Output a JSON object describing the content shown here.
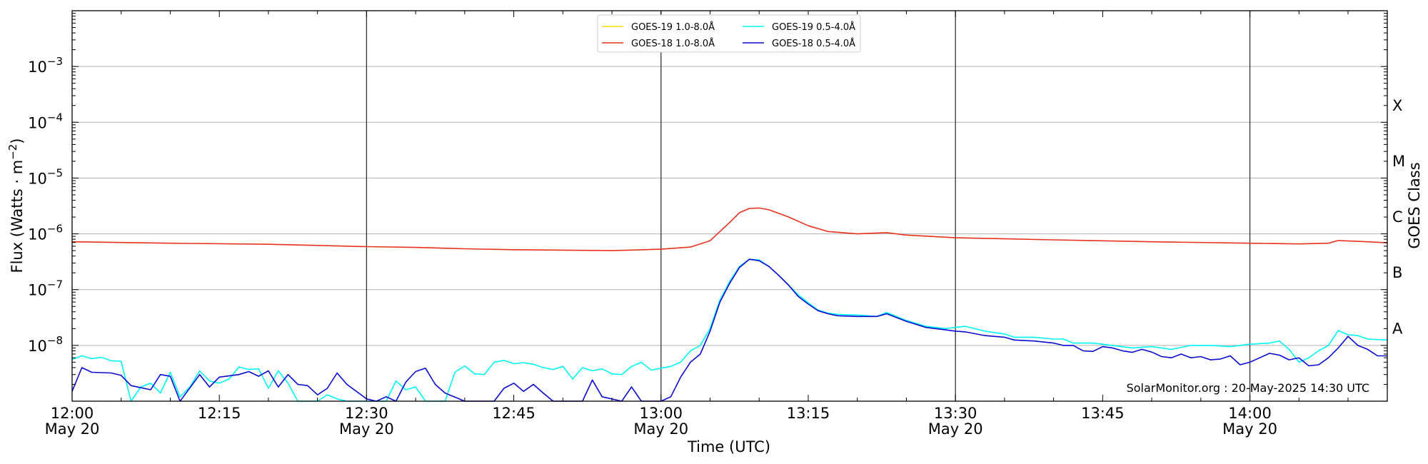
{
  "chart_data": {
    "type": "line",
    "xlabel": "Time (UTC)",
    "ylabel_main": "Flux (Watts · m",
    "ylabel_sup": "−2",
    "ylabel_end": ")",
    "ylabel_right": "GOES Class",
    "y_scale": "log",
    "ylim": [
      1e-09,
      0.01
    ],
    "xlim": [
      "12:00",
      "14:14"
    ],
    "grid": "horizontal",
    "credit": "SolarMonitor.org : 20-May-2025 14:30 UTC",
    "legend_position": "top-center",
    "ytick_labels": [
      {
        "base": "10",
        "exp": "−3",
        "value": 0.001
      },
      {
        "base": "10",
        "exp": "−4",
        "value": 0.0001
      },
      {
        "base": "10",
        "exp": "−5",
        "value": 1e-05
      },
      {
        "base": "10",
        "exp": "−6",
        "value": 1e-06
      },
      {
        "base": "10",
        "exp": "−7",
        "value": 1e-07
      },
      {
        "base": "10",
        "exp": "−8",
        "value": 1e-08
      }
    ],
    "xtick_labels": [
      {
        "time": "12:00",
        "date": "May 20"
      },
      {
        "time": "12:15",
        "date": ""
      },
      {
        "time": "12:30",
        "date": "May 20"
      },
      {
        "time": "12:45",
        "date": ""
      },
      {
        "time": "13:00",
        "date": "May 20"
      },
      {
        "time": "13:15",
        "date": ""
      },
      {
        "time": "13:30",
        "date": "May 20"
      },
      {
        "time": "13:45",
        "date": ""
      },
      {
        "time": "14:00",
        "date": "May 20"
      }
    ],
    "vertical_lines": [
      "12:30",
      "13:00",
      "13:30",
      "14:00"
    ],
    "goes_classes": [
      {
        "label": "X",
        "value": 0.0002
      },
      {
        "label": "M",
        "value": 2e-05
      },
      {
        "label": "C",
        "value": 2e-06
      },
      {
        "label": "B",
        "value": 2e-07
      },
      {
        "label": "A",
        "value": 2e-08
      }
    ],
    "series": [
      {
        "name": "GOES-19 1.0-8.0Å",
        "color": "#ffd700",
        "points": []
      },
      {
        "name": "GOES-18 1.0-8.0Å",
        "color": "#e8321e",
        "points": [
          [
            "12:00",
            7.2e-07
          ],
          [
            "12:05",
            7e-07
          ],
          [
            "12:10",
            6.8e-07
          ],
          [
            "12:20",
            6.5e-07
          ],
          [
            "12:25",
            6.2e-07
          ],
          [
            "12:30",
            5.9e-07
          ],
          [
            "12:35",
            5.7e-07
          ],
          [
            "12:40",
            5.4e-07
          ],
          [
            "12:45",
            5.2e-07
          ],
          [
            "12:50",
            5.1e-07
          ],
          [
            "12:55",
            5e-07
          ],
          [
            "13:00",
            5.3e-07
          ],
          [
            "13:03",
            5.8e-07
          ],
          [
            "13:05",
            7.5e-07
          ],
          [
            "13:06",
            1.1e-06
          ],
          [
            "13:07",
            1.6e-06
          ],
          [
            "13:08",
            2.4e-06
          ],
          [
            "13:09",
            2.85e-06
          ],
          [
            "13:10",
            2.9e-06
          ],
          [
            "13:11",
            2.7e-06
          ],
          [
            "13:13",
            2e-06
          ],
          [
            "13:15",
            1.4e-06
          ],
          [
            "13:17",
            1.1e-06
          ],
          [
            "13:20",
            1e-06
          ],
          [
            "13:23",
            1.05e-06
          ],
          [
            "13:25",
            9.5e-07
          ],
          [
            "13:30",
            8.5e-07
          ],
          [
            "13:40",
            7.8e-07
          ],
          [
            "13:50",
            7.2e-07
          ],
          [
            "14:00",
            6.8e-07
          ],
          [
            "14:05",
            6.6e-07
          ],
          [
            "14:08",
            6.8e-07
          ],
          [
            "14:09",
            7.6e-07
          ],
          [
            "14:12",
            7.2e-07
          ],
          [
            "14:14",
            6.9e-07
          ]
        ]
      },
      {
        "name": "GOES-19 0.5-4.0Å",
        "color": "#00f5f5",
        "points": [
          [
            "12:00",
            5.6e-09
          ],
          [
            "12:01",
            6.5e-09
          ],
          [
            "12:02",
            5.8e-09
          ],
          [
            "12:03",
            6.1e-09
          ],
          [
            "12:04",
            5.3e-09
          ],
          [
            "12:05",
            5.2e-09
          ],
          [
            "12:06",
            1e-09
          ],
          [
            "12:07",
            1.8e-09
          ],
          [
            "12:08",
            2.1e-09
          ],
          [
            "12:09",
            1.4e-09
          ],
          [
            "12:10",
            3.3e-09
          ],
          [
            "12:11",
            1.2e-09
          ],
          [
            "12:12",
            1.8e-09
          ],
          [
            "12:13",
            3.5e-09
          ],
          [
            "12:14",
            2.3e-09
          ],
          [
            "12:15",
            2.1e-09
          ],
          [
            "12:16",
            2.5e-09
          ],
          [
            "12:17",
            4.1e-09
          ],
          [
            "12:18",
            3.7e-09
          ],
          [
            "12:19",
            3.8e-09
          ],
          [
            "12:20",
            1.7e-09
          ],
          [
            "12:21",
            3.5e-09
          ],
          [
            "12:22",
            2.1e-09
          ],
          [
            "12:23",
            1e-09
          ],
          [
            "12:24",
            1e-09
          ],
          [
            "12:25",
            1e-09
          ],
          [
            "12:26",
            1.3e-09
          ],
          [
            "12:27",
            1.1e-09
          ],
          [
            "12:28",
            1e-09
          ],
          [
            "12:30",
            1e-09
          ],
          [
            "12:32",
            1e-09
          ],
          [
            "12:33",
            2.3e-09
          ],
          [
            "12:34",
            1.6e-09
          ],
          [
            "12:35",
            1.8e-09
          ],
          [
            "12:36",
            1e-09
          ],
          [
            "12:38",
            1e-09
          ],
          [
            "12:39",
            3.3e-09
          ],
          [
            "12:40",
            4.3e-09
          ],
          [
            "12:41",
            3.1e-09
          ],
          [
            "12:42",
            3e-09
          ],
          [
            "12:43",
            5e-09
          ],
          [
            "12:44",
            5.4e-09
          ],
          [
            "12:45",
            4.7e-09
          ],
          [
            "12:46",
            4.9e-09
          ],
          [
            "12:47",
            4.6e-09
          ],
          [
            "12:48",
            4e-09
          ],
          [
            "12:49",
            3.7e-09
          ],
          [
            "12:50",
            4.2e-09
          ],
          [
            "12:51",
            2.5e-09
          ],
          [
            "12:52",
            4e-09
          ],
          [
            "12:53",
            3.5e-09
          ],
          [
            "12:54",
            3.8e-09
          ],
          [
            "12:55",
            3.1e-09
          ],
          [
            "12:56",
            3e-09
          ],
          [
            "12:57",
            4.2e-09
          ],
          [
            "12:58",
            5e-09
          ],
          [
            "12:59",
            3.6e-09
          ],
          [
            "13:00",
            3.9e-09
          ],
          [
            "13:01",
            4.2e-09
          ],
          [
            "13:02",
            5e-09
          ],
          [
            "13:03",
            8e-09
          ],
          [
            "13:04",
            1e-08
          ],
          [
            "13:05",
            2e-08
          ],
          [
            "13:06",
            6.5e-08
          ],
          [
            "13:07",
            1.4e-07
          ],
          [
            "13:08",
            2.6e-07
          ],
          [
            "13:09",
            3.5e-07
          ],
          [
            "13:10",
            3.4e-07
          ],
          [
            "13:11",
            2.6e-07
          ],
          [
            "13:12",
            1.8e-07
          ],
          [
            "13:13",
            1.2e-07
          ],
          [
            "13:14",
            8e-08
          ],
          [
            "13:15",
            5.8e-08
          ],
          [
            "13:16",
            4.3e-08
          ],
          [
            "13:17",
            3.8e-08
          ],
          [
            "13:18",
            3.6e-08
          ],
          [
            "13:20",
            3.5e-08
          ],
          [
            "13:22",
            3.3e-08
          ],
          [
            "13:23",
            3.9e-08
          ],
          [
            "13:25",
            2.8e-08
          ],
          [
            "13:27",
            2.2e-08
          ],
          [
            "13:29",
            2e-08
          ],
          [
            "13:30",
            2.1e-08
          ],
          [
            "13:31",
            2.2e-08
          ],
          [
            "13:33",
            1.8e-08
          ],
          [
            "13:35",
            1.6e-08
          ],
          [
            "13:36",
            1.4e-08
          ],
          [
            "13:38",
            1.4e-08
          ],
          [
            "13:40",
            1.3e-08
          ],
          [
            "13:41",
            1.3e-08
          ],
          [
            "13:42",
            1.1e-08
          ],
          [
            "13:44",
            1.1e-08
          ],
          [
            "13:46",
            1e-08
          ],
          [
            "13:48",
            9e-09
          ],
          [
            "13:50",
            9.5e-09
          ],
          [
            "13:52",
            8.5e-09
          ],
          [
            "13:54",
            1e-08
          ],
          [
            "13:56",
            1e-08
          ],
          [
            "13:58",
            9.5e-09
          ],
          [
            "14:00",
            1.05e-08
          ],
          [
            "14:02",
            1.1e-08
          ],
          [
            "14:03",
            1.2e-08
          ],
          [
            "14:04",
            8.5e-09
          ],
          [
            "14:05",
            5e-09
          ],
          [
            "14:06",
            6e-09
          ],
          [
            "14:07",
            8e-09
          ],
          [
            "14:08",
            1e-08
          ],
          [
            "14:09",
            1.85e-08
          ],
          [
            "14:10",
            1.55e-08
          ],
          [
            "14:11",
            1.5e-08
          ],
          [
            "14:12",
            1.3e-08
          ],
          [
            "14:14",
            1.25e-08
          ]
        ]
      },
      {
        "name": "GOES-18 0.5-4.0Å",
        "color": "#0a0ad0",
        "points": [
          [
            "12:00",
            1.5e-09
          ],
          [
            "12:01",
            4e-09
          ],
          [
            "12:02",
            3.3e-09
          ],
          [
            "12:04",
            3.2e-09
          ],
          [
            "12:05",
            2.9e-09
          ],
          [
            "12:06",
            1.9e-09
          ],
          [
            "12:08",
            1.6e-09
          ],
          [
            "12:09",
            3e-09
          ],
          [
            "12:10",
            2.8e-09
          ],
          [
            "12:11",
            1e-09
          ],
          [
            "12:13",
            3e-09
          ],
          [
            "12:14",
            1.8e-09
          ],
          [
            "12:15",
            2.7e-09
          ],
          [
            "12:17",
            3e-09
          ],
          [
            "12:18",
            3.4e-09
          ],
          [
            "12:19",
            2.8e-09
          ],
          [
            "12:20",
            3.5e-09
          ],
          [
            "12:21",
            1.8e-09
          ],
          [
            "12:22",
            3e-09
          ],
          [
            "12:23",
            2e-09
          ],
          [
            "12:24",
            1.9e-09
          ],
          [
            "12:25",
            1.3e-09
          ],
          [
            "12:26",
            1.7e-09
          ],
          [
            "12:27",
            3.2e-09
          ],
          [
            "12:28",
            2e-09
          ],
          [
            "12:30",
            1.1e-09
          ],
          [
            "12:31",
            1e-09
          ],
          [
            "12:32",
            1.2e-09
          ],
          [
            "12:33",
            1e-09
          ],
          [
            "12:34",
            2.2e-09
          ],
          [
            "12:35",
            3.4e-09
          ],
          [
            "12:36",
            3.9e-09
          ],
          [
            "12:37",
            2e-09
          ],
          [
            "12:38",
            1.4e-09
          ],
          [
            "12:40",
            1e-09
          ],
          [
            "12:43",
            1e-09
          ],
          [
            "12:44",
            1.7e-09
          ],
          [
            "12:45",
            2.1e-09
          ],
          [
            "12:46",
            1.5e-09
          ],
          [
            "12:47",
            2e-09
          ],
          [
            "12:48",
            1.4e-09
          ],
          [
            "12:49",
            1e-09
          ],
          [
            "12:50",
            1e-09
          ],
          [
            "12:52",
            1e-09
          ],
          [
            "12:53",
            2.4e-09
          ],
          [
            "12:54",
            1.2e-09
          ],
          [
            "12:56",
            1e-09
          ],
          [
            "12:57",
            1.8e-09
          ],
          [
            "12:58",
            1e-09
          ],
          [
            "12:59",
            1e-09
          ],
          [
            "13:00",
            1e-09
          ],
          [
            "13:01",
            1.2e-09
          ],
          [
            "13:02",
            2.7e-09
          ],
          [
            "13:03",
            5e-09
          ],
          [
            "13:04",
            7e-09
          ],
          [
            "13:05",
            1.8e-08
          ],
          [
            "13:06",
            6e-08
          ],
          [
            "13:07",
            1.3e-07
          ],
          [
            "13:08",
            2.5e-07
          ],
          [
            "13:09",
            3.5e-07
          ],
          [
            "13:10",
            3.3e-07
          ],
          [
            "13:11",
            2.6e-07
          ],
          [
            "13:12",
            1.8e-07
          ],
          [
            "13:13",
            1.2e-07
          ],
          [
            "13:14",
            7.5e-08
          ],
          [
            "13:15",
            5.5e-08
          ],
          [
            "13:16",
            4.2e-08
          ],
          [
            "13:17",
            3.7e-08
          ],
          [
            "13:18",
            3.4e-08
          ],
          [
            "13:20",
            3.3e-08
          ],
          [
            "13:22",
            3.3e-08
          ],
          [
            "13:23",
            3.7e-08
          ],
          [
            "13:25",
            2.7e-08
          ],
          [
            "13:27",
            2.1e-08
          ],
          [
            "13:29",
            1.9e-08
          ],
          [
            "13:30",
            1.8e-08
          ],
          [
            "13:31",
            1.75e-08
          ],
          [
            "13:33",
            1.5e-08
          ],
          [
            "13:35",
            1.4e-08
          ],
          [
            "13:36",
            1.25e-08
          ],
          [
            "13:38",
            1.2e-08
          ],
          [
            "13:40",
            1.1e-08
          ],
          [
            "13:41",
            1e-08
          ],
          [
            "13:42",
            1e-08
          ],
          [
            "13:43",
            8e-09
          ],
          [
            "13:44",
            7.8e-09
          ],
          [
            "13:45",
            9.5e-09
          ],
          [
            "13:46",
            9e-09
          ],
          [
            "13:47",
            8e-09
          ],
          [
            "13:48",
            7.5e-09
          ],
          [
            "13:49",
            8.5e-09
          ],
          [
            "13:50",
            7.6e-09
          ],
          [
            "13:51",
            6.3e-09
          ],
          [
            "13:52",
            6e-09
          ],
          [
            "13:53",
            7e-09
          ],
          [
            "13:54",
            6e-09
          ],
          [
            "13:55",
            6.3e-09
          ],
          [
            "13:56",
            5.5e-09
          ],
          [
            "13:57",
            5.7e-09
          ],
          [
            "13:58",
            6.5e-09
          ],
          [
            "13:59",
            4.5e-09
          ],
          [
            "14:00",
            5e-09
          ],
          [
            "14:01",
            6e-09
          ],
          [
            "14:02",
            7.2e-09
          ],
          [
            "14:03",
            6.7e-09
          ],
          [
            "14:04",
            5.5e-09
          ],
          [
            "14:05",
            6e-09
          ],
          [
            "14:06",
            4.3e-09
          ],
          [
            "14:07",
            4.5e-09
          ],
          [
            "14:08",
            6e-09
          ],
          [
            "14:09",
            9e-09
          ],
          [
            "14:10",
            1.45e-08
          ],
          [
            "14:11",
            1e-08
          ],
          [
            "14:12",
            8.5e-09
          ],
          [
            "14:13",
            6.5e-09
          ],
          [
            "14:14",
            6.5e-09
          ]
        ]
      }
    ]
  }
}
